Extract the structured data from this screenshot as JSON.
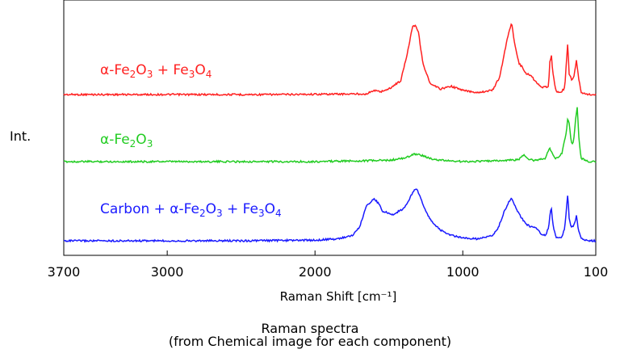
{
  "caption": {
    "line1": "Raman spectra",
    "line2": "(from Chemical image for each component)"
  },
  "chart_data": {
    "type": "line",
    "title": "",
    "xlabel": "Raman Shift [cm⁻¹]",
    "ylabel": "Int.",
    "xlim": [
      3700,
      100
    ],
    "x_reversed": true,
    "x_ticks": [
      3700,
      3000,
      2000,
      1000,
      100
    ],
    "y_ticks_shown": false,
    "grid": false,
    "legend": "none",
    "series": [
      {
        "name": "α-Fe2O3 + Fe3O4",
        "label_parts": [
          [
            "α-Fe",
            ""
          ],
          [
            "2",
            "sub"
          ],
          [
            "O",
            ""
          ],
          [
            "3",
            "sub"
          ],
          [
            " + Fe",
            ""
          ],
          [
            "3",
            "sub"
          ],
          [
            "O",
            ""
          ],
          [
            "4",
            "sub"
          ]
        ],
        "color": "#ff2020",
        "points": [
          [
            3700,
            0
          ],
          [
            2300,
            0
          ],
          [
            1650,
            0.01
          ],
          [
            1600,
            0.06
          ],
          [
            1560,
            0.04
          ],
          [
            1500,
            0.08
          ],
          [
            1420,
            0.2
          ],
          [
            1380,
            0.55
          ],
          [
            1340,
            0.98
          ],
          [
            1320,
            1.0
          ],
          [
            1300,
            0.9
          ],
          [
            1270,
            0.45
          ],
          [
            1220,
            0.15
          ],
          [
            1150,
            0.08
          ],
          [
            1080,
            0.12
          ],
          [
            1000,
            0.06
          ],
          [
            900,
            0.03
          ],
          [
            800,
            0.06
          ],
          [
            750,
            0.25
          ],
          [
            700,
            0.8
          ],
          [
            670,
            1.03
          ],
          [
            650,
            0.75
          ],
          [
            620,
            0.45
          ],
          [
            600,
            0.4
          ],
          [
            570,
            0.3
          ],
          [
            540,
            0.28
          ],
          [
            520,
            0.22
          ],
          [
            500,
            0.18
          ],
          [
            480,
            0.12
          ],
          [
            460,
            0.1
          ],
          [
            420,
            0.12
          ],
          [
            410,
            0.5
          ],
          [
            400,
            0.55
          ],
          [
            390,
            0.3
          ],
          [
            370,
            0.05
          ],
          [
            340,
            0.02
          ],
          [
            310,
            0.1
          ],
          [
            295,
            0.6
          ],
          [
            290,
            0.73
          ],
          [
            280,
            0.3
          ],
          [
            260,
            0.2
          ],
          [
            250,
            0.25
          ],
          [
            240,
            0.35
          ],
          [
            230,
            0.5
          ],
          [
            220,
            0.3
          ],
          [
            200,
            0.03
          ],
          [
            150,
            0.0
          ],
          [
            100,
            0.0
          ]
        ]
      },
      {
        "name": "α-Fe2O3",
        "label_parts": [
          [
            "α-Fe",
            ""
          ],
          [
            "2",
            "sub"
          ],
          [
            "O",
            ""
          ],
          [
            "3",
            "sub"
          ]
        ],
        "color": "#22cc22",
        "points": [
          [
            3700,
            0
          ],
          [
            2000,
            0
          ],
          [
            1500,
            0.02
          ],
          [
            1400,
            0.05
          ],
          [
            1320,
            0.12
          ],
          [
            1280,
            0.1
          ],
          [
            1200,
            0.03
          ],
          [
            1000,
            0
          ],
          [
            800,
            0.01
          ],
          [
            700,
            0.02
          ],
          [
            620,
            0.03
          ],
          [
            600,
            0.08
          ],
          [
            580,
            0.1
          ],
          [
            560,
            0.04
          ],
          [
            520,
            0.02
          ],
          [
            440,
            0.05
          ],
          [
            420,
            0.18
          ],
          [
            410,
            0.2
          ],
          [
            400,
            0.15
          ],
          [
            390,
            0.1
          ],
          [
            370,
            0.05
          ],
          [
            330,
            0.12
          ],
          [
            300,
            0.45
          ],
          [
            290,
            0.68
          ],
          [
            280,
            0.6
          ],
          [
            265,
            0.28
          ],
          [
            250,
            0.3
          ],
          [
            235,
            0.7
          ],
          [
            225,
            0.85
          ],
          [
            215,
            0.4
          ],
          [
            200,
            0.05
          ],
          [
            150,
            0
          ],
          [
            100,
            0
          ]
        ]
      },
      {
        "name": "Carbon + α-Fe2O3 + Fe3O4",
        "label_parts": [
          [
            "Carbon + α-Fe",
            ""
          ],
          [
            "2",
            "sub"
          ],
          [
            "O",
            ""
          ],
          [
            "3",
            "sub"
          ],
          [
            " + Fe",
            ""
          ],
          [
            "3",
            "sub"
          ],
          [
            "O",
            ""
          ],
          [
            "4",
            "sub"
          ]
        ],
        "color": "#1a1aff",
        "points": [
          [
            3700,
            0
          ],
          [
            2500,
            0
          ],
          [
            2000,
            0.01
          ],
          [
            1850,
            0.03
          ],
          [
            1750,
            0.08
          ],
          [
            1700,
            0.2
          ],
          [
            1650,
            0.55
          ],
          [
            1600,
            0.65
          ],
          [
            1570,
            0.58
          ],
          [
            1540,
            0.45
          ],
          [
            1500,
            0.43
          ],
          [
            1470,
            0.4
          ],
          [
            1440,
            0.45
          ],
          [
            1400,
            0.5
          ],
          [
            1360,
            0.65
          ],
          [
            1330,
            0.78
          ],
          [
            1310,
            0.8
          ],
          [
            1290,
            0.7
          ],
          [
            1260,
            0.5
          ],
          [
            1220,
            0.33
          ],
          [
            1160,
            0.18
          ],
          [
            1100,
            0.1
          ],
          [
            1000,
            0.04
          ],
          [
            900,
            0.03
          ],
          [
            800,
            0.08
          ],
          [
            760,
            0.2
          ],
          [
            720,
            0.45
          ],
          [
            690,
            0.6
          ],
          [
            670,
            0.65
          ],
          [
            650,
            0.55
          ],
          [
            620,
            0.42
          ],
          [
            600,
            0.35
          ],
          [
            570,
            0.25
          ],
          [
            540,
            0.22
          ],
          [
            500,
            0.2
          ],
          [
            470,
            0.1
          ],
          [
            440,
            0.08
          ],
          [
            420,
            0.2
          ],
          [
            405,
            0.48
          ],
          [
            400,
            0.5
          ],
          [
            390,
            0.25
          ],
          [
            370,
            0.05
          ],
          [
            330,
            0.05
          ],
          [
            310,
            0.2
          ],
          [
            295,
            0.6
          ],
          [
            290,
            0.72
          ],
          [
            280,
            0.35
          ],
          [
            265,
            0.2
          ],
          [
            255,
            0.22
          ],
          [
            240,
            0.3
          ],
          [
            230,
            0.4
          ],
          [
            220,
            0.2
          ],
          [
            200,
            0.03
          ],
          [
            150,
            0
          ],
          [
            100,
            0
          ]
        ]
      }
    ]
  }
}
